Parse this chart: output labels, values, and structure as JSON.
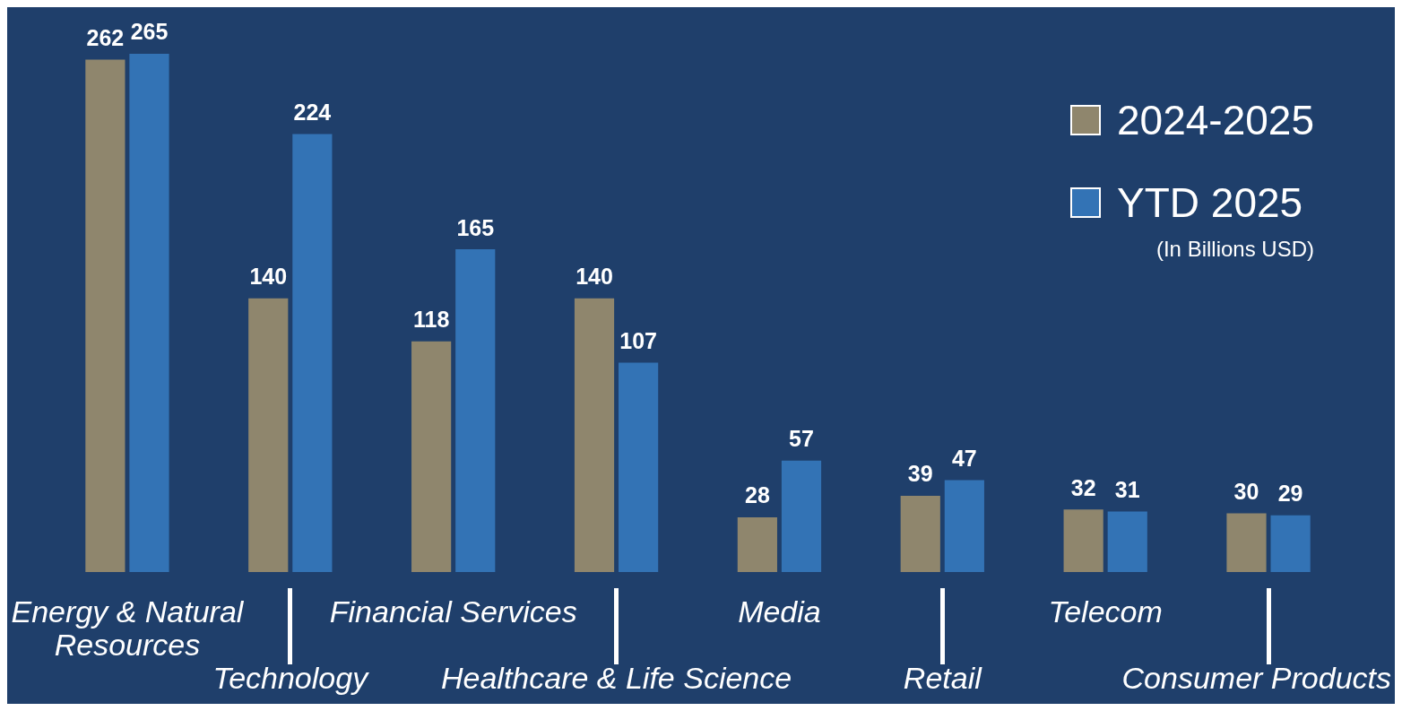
{
  "chart_data": {
    "type": "bar",
    "categories": [
      "Energy & Natural Resources",
      "Technology",
      "Financial Services",
      "Healthcare & Life Science",
      "Media",
      "Retail",
      "Telecom",
      "Consumer Products"
    ],
    "series": [
      {
        "name": "2024-2025",
        "color": "#8f866d",
        "values": [
          262,
          140,
          118,
          140,
          28,
          39,
          32,
          30
        ]
      },
      {
        "name": "YTD 2025",
        "color": "#3373b5",
        "values": [
          265,
          224,
          165,
          107,
          57,
          47,
          31,
          29
        ]
      }
    ],
    "data_labels": true,
    "legend": "top right",
    "annotations": [
      "(In Billions USD)"
    ]
  }
}
